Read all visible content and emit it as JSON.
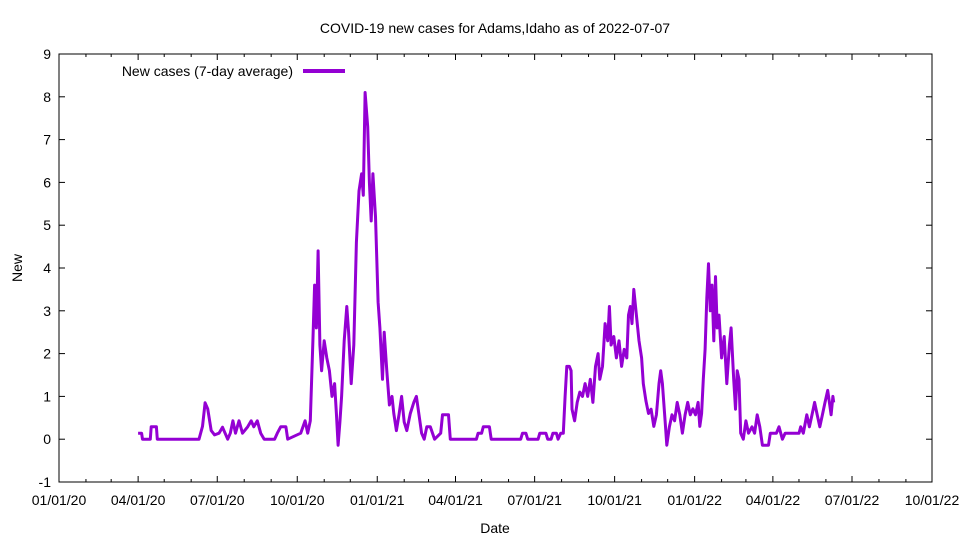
{
  "chart_data": {
    "type": "line",
    "title": "COVID-19 new cases for Adams,Idaho as of 2022-07-07",
    "xlabel": "Date",
    "ylabel": "New",
    "legend_position": "top-left",
    "grid": false,
    "ylim": [
      -1,
      9
    ],
    "xlim": [
      "2020-01-01",
      "2022-10-01"
    ],
    "y_ticks": [
      "-1",
      "0",
      "1",
      "2",
      "3",
      "4",
      "5",
      "6",
      "7",
      "8",
      "9"
    ],
    "x_ticks": [
      {
        "date": "2020-01-01",
        "label": "01/01/20"
      },
      {
        "date": "2020-04-01",
        "label": "04/01/20"
      },
      {
        "date": "2020-07-01",
        "label": "07/01/20"
      },
      {
        "date": "2020-10-01",
        "label": "10/01/20"
      },
      {
        "date": "2021-01-01",
        "label": "01/01/21"
      },
      {
        "date": "2021-04-01",
        "label": "04/01/21"
      },
      {
        "date": "2021-07-01",
        "label": "07/01/21"
      },
      {
        "date": "2021-10-01",
        "label": "10/01/21"
      },
      {
        "date": "2022-01-01",
        "label": "01/01/22"
      },
      {
        "date": "2022-04-01",
        "label": "04/01/22"
      },
      {
        "date": "2022-07-01",
        "label": "07/01/22"
      },
      {
        "date": "2022-10-01",
        "label": "10/01/22"
      }
    ],
    "series": [
      {
        "name": "New cases (7-day average)",
        "color": "#9400d3",
        "points": [
          [
            "2020-04-01",
            0.14
          ],
          [
            "2020-04-05",
            0.14
          ],
          [
            "2020-04-06",
            0
          ],
          [
            "2020-04-15",
            0
          ],
          [
            "2020-04-16",
            0.29
          ],
          [
            "2020-04-22",
            0.29
          ],
          [
            "2020-04-23",
            0
          ],
          [
            "2020-06-10",
            0
          ],
          [
            "2020-06-14",
            0.3
          ],
          [
            "2020-06-17",
            0.85
          ],
          [
            "2020-06-20",
            0.71
          ],
          [
            "2020-06-24",
            0.2
          ],
          [
            "2020-06-28",
            0.1
          ],
          [
            "2020-07-03",
            0.14
          ],
          [
            "2020-07-07",
            0.28
          ],
          [
            "2020-07-10",
            0.14
          ],
          [
            "2020-07-13",
            0
          ],
          [
            "2020-07-16",
            0.14
          ],
          [
            "2020-07-19",
            0.43
          ],
          [
            "2020-07-22",
            0.14
          ],
          [
            "2020-07-26",
            0.43
          ],
          [
            "2020-07-30",
            0.14
          ],
          [
            "2020-08-05",
            0.29
          ],
          [
            "2020-08-09",
            0.43
          ],
          [
            "2020-08-12",
            0.29
          ],
          [
            "2020-08-16",
            0.43
          ],
          [
            "2020-08-20",
            0.14
          ],
          [
            "2020-08-24",
            0
          ],
          [
            "2020-09-05",
            0
          ],
          [
            "2020-09-08",
            0.14
          ],
          [
            "2020-09-12",
            0.29
          ],
          [
            "2020-09-18",
            0.29
          ],
          [
            "2020-09-20",
            0
          ],
          [
            "2020-10-05",
            0.14
          ],
          [
            "2020-10-10",
            0.43
          ],
          [
            "2020-10-13",
            0.14
          ],
          [
            "2020-10-16",
            0.43
          ],
          [
            "2020-10-19",
            2.3
          ],
          [
            "2020-10-21",
            3.6
          ],
          [
            "2020-10-23",
            2.6
          ],
          [
            "2020-10-25",
            4.4
          ],
          [
            "2020-10-27",
            2.2
          ],
          [
            "2020-10-29",
            1.6
          ],
          [
            "2020-11-01",
            2.3
          ],
          [
            "2020-11-04",
            1.9
          ],
          [
            "2020-11-07",
            1.6
          ],
          [
            "2020-11-10",
            1.0
          ],
          [
            "2020-11-13",
            1.3
          ],
          [
            "2020-11-15",
            0.6
          ],
          [
            "2020-11-17",
            -0.14
          ],
          [
            "2020-11-19",
            0.4
          ],
          [
            "2020-11-21",
            1.0
          ],
          [
            "2020-11-24",
            2.3
          ],
          [
            "2020-11-27",
            3.1
          ],
          [
            "2020-11-29",
            2.5
          ],
          [
            "2020-12-02",
            1.3
          ],
          [
            "2020-12-05",
            2.2
          ],
          [
            "2020-12-08",
            4.6
          ],
          [
            "2020-12-11",
            5.8
          ],
          [
            "2020-12-14",
            6.2
          ],
          [
            "2020-12-16",
            5.7
          ],
          [
            "2020-12-18",
            8.1
          ],
          [
            "2020-12-21",
            7.3
          ],
          [
            "2020-12-23",
            6.0
          ],
          [
            "2020-12-25",
            5.1
          ],
          [
            "2020-12-27",
            6.2
          ],
          [
            "2020-12-30",
            5.2
          ],
          [
            "2021-01-02",
            3.2
          ],
          [
            "2021-01-04",
            2.6
          ],
          [
            "2021-01-07",
            1.4
          ],
          [
            "2021-01-09",
            2.5
          ],
          [
            "2021-01-12",
            1.6
          ],
          [
            "2021-01-15",
            0.8
          ],
          [
            "2021-01-18",
            1.0
          ],
          [
            "2021-01-20",
            0.6
          ],
          [
            "2021-01-23",
            0.2
          ],
          [
            "2021-01-26",
            0.57
          ],
          [
            "2021-01-29",
            1.0
          ],
          [
            "2021-02-01",
            0.4
          ],
          [
            "2021-02-04",
            0.2
          ],
          [
            "2021-02-08",
            0.6
          ],
          [
            "2021-02-12",
            0.86
          ],
          [
            "2021-02-15",
            1.0
          ],
          [
            "2021-02-18",
            0.57
          ],
          [
            "2021-02-21",
            0.14
          ],
          [
            "2021-02-24",
            0
          ],
          [
            "2021-02-27",
            0.29
          ],
          [
            "2021-03-03",
            0.29
          ],
          [
            "2021-03-08",
            0
          ],
          [
            "2021-03-15",
            0.14
          ],
          [
            "2021-03-17",
            0.57
          ],
          [
            "2021-03-24",
            0.57
          ],
          [
            "2021-03-26",
            0
          ],
          [
            "2021-04-25",
            0
          ],
          [
            "2021-04-27",
            0.14
          ],
          [
            "2021-05-01",
            0.14
          ],
          [
            "2021-05-03",
            0.29
          ],
          [
            "2021-05-10",
            0.29
          ],
          [
            "2021-05-12",
            0
          ],
          [
            "2021-06-15",
            0
          ],
          [
            "2021-06-17",
            0.14
          ],
          [
            "2021-06-21",
            0.14
          ],
          [
            "2021-06-23",
            0
          ],
          [
            "2021-07-05",
            0
          ],
          [
            "2021-07-07",
            0.14
          ],
          [
            "2021-07-14",
            0.14
          ],
          [
            "2021-07-16",
            0
          ],
          [
            "2021-07-20",
            0
          ],
          [
            "2021-07-22",
            0.14
          ],
          [
            "2021-07-26",
            0.14
          ],
          [
            "2021-07-28",
            0
          ],
          [
            "2021-07-31",
            0.14
          ],
          [
            "2021-08-03",
            0.14
          ],
          [
            "2021-08-05",
            1.0
          ],
          [
            "2021-08-07",
            1.7
          ],
          [
            "2021-08-10",
            1.7
          ],
          [
            "2021-08-12",
            1.6
          ],
          [
            "2021-08-13",
            0.7
          ],
          [
            "2021-08-16",
            0.43
          ],
          [
            "2021-08-19",
            0.86
          ],
          [
            "2021-08-22",
            1.1
          ],
          [
            "2021-08-25",
            1.0
          ],
          [
            "2021-08-28",
            1.3
          ],
          [
            "2021-08-31",
            1.0
          ],
          [
            "2021-09-03",
            1.4
          ],
          [
            "2021-09-06",
            0.86
          ],
          [
            "2021-09-09",
            1.7
          ],
          [
            "2021-09-12",
            2.0
          ],
          [
            "2021-09-14",
            1.4
          ],
          [
            "2021-09-17",
            1.7
          ],
          [
            "2021-09-20",
            2.7
          ],
          [
            "2021-09-23",
            2.3
          ],
          [
            "2021-09-25",
            3.1
          ],
          [
            "2021-09-27",
            2.2
          ],
          [
            "2021-09-30",
            2.4
          ],
          [
            "2021-10-03",
            1.9
          ],
          [
            "2021-10-06",
            2.3
          ],
          [
            "2021-10-09",
            1.7
          ],
          [
            "2021-10-12",
            2.1
          ],
          [
            "2021-10-15",
            1.9
          ],
          [
            "2021-10-17",
            2.9
          ],
          [
            "2021-10-19",
            3.1
          ],
          [
            "2021-10-21",
            2.7
          ],
          [
            "2021-10-23",
            3.5
          ],
          [
            "2021-10-26",
            2.9
          ],
          [
            "2021-10-29",
            2.3
          ],
          [
            "2021-11-01",
            1.9
          ],
          [
            "2021-11-03",
            1.3
          ],
          [
            "2021-11-06",
            0.9
          ],
          [
            "2021-11-09",
            0.6
          ],
          [
            "2021-11-12",
            0.7
          ],
          [
            "2021-11-15",
            0.3
          ],
          [
            "2021-11-18",
            0.57
          ],
          [
            "2021-11-21",
            1.3
          ],
          [
            "2021-11-23",
            1.6
          ],
          [
            "2021-11-25",
            1.3
          ],
          [
            "2021-11-28",
            0.43
          ],
          [
            "2021-11-30",
            -0.14
          ],
          [
            "2021-12-03",
            0.29
          ],
          [
            "2021-12-06",
            0.57
          ],
          [
            "2021-12-09",
            0.43
          ],
          [
            "2021-12-12",
            0.86
          ],
          [
            "2021-12-15",
            0.57
          ],
          [
            "2021-12-18",
            0.14
          ],
          [
            "2021-12-21",
            0.57
          ],
          [
            "2021-12-24",
            0.86
          ],
          [
            "2021-12-27",
            0.57
          ],
          [
            "2021-12-30",
            0.71
          ],
          [
            "2022-01-02",
            0.57
          ],
          [
            "2022-01-05",
            0.86
          ],
          [
            "2022-01-07",
            0.3
          ],
          [
            "2022-01-09",
            0.6
          ],
          [
            "2022-01-11",
            1.4
          ],
          [
            "2022-01-13",
            2.1
          ],
          [
            "2022-01-15",
            3.3
          ],
          [
            "2022-01-17",
            4.1
          ],
          [
            "2022-01-19",
            3.0
          ],
          [
            "2022-01-21",
            3.6
          ],
          [
            "2022-01-23",
            2.3
          ],
          [
            "2022-01-25",
            3.8
          ],
          [
            "2022-01-27",
            2.6
          ],
          [
            "2022-01-29",
            2.9
          ],
          [
            "2022-02-01",
            1.9
          ],
          [
            "2022-02-04",
            2.4
          ],
          [
            "2022-02-07",
            1.3
          ],
          [
            "2022-02-10",
            2.2
          ],
          [
            "2022-02-12",
            2.6
          ],
          [
            "2022-02-15",
            1.4
          ],
          [
            "2022-02-17",
            0.7
          ],
          [
            "2022-02-19",
            1.6
          ],
          [
            "2022-02-21",
            1.4
          ],
          [
            "2022-02-23",
            0.14
          ],
          [
            "2022-02-26",
            0
          ],
          [
            "2022-03-01",
            0.43
          ],
          [
            "2022-03-04",
            0.14
          ],
          [
            "2022-03-08",
            0.29
          ],
          [
            "2022-03-11",
            0.14
          ],
          [
            "2022-03-14",
            0.57
          ],
          [
            "2022-03-17",
            0.29
          ],
          [
            "2022-03-20",
            -0.14
          ],
          [
            "2022-03-27",
            -0.14
          ],
          [
            "2022-03-29",
            0.14
          ],
          [
            "2022-04-05",
            0.14
          ],
          [
            "2022-04-08",
            0.29
          ],
          [
            "2022-04-12",
            0
          ],
          [
            "2022-04-15",
            0.14
          ],
          [
            "2022-05-01",
            0.14
          ],
          [
            "2022-05-03",
            0.29
          ],
          [
            "2022-05-06",
            0.14
          ],
          [
            "2022-05-10",
            0.57
          ],
          [
            "2022-05-13",
            0.29
          ],
          [
            "2022-05-16",
            0.57
          ],
          [
            "2022-05-19",
            0.86
          ],
          [
            "2022-05-22",
            0.57
          ],
          [
            "2022-05-25",
            0.29
          ],
          [
            "2022-05-28",
            0.57
          ],
          [
            "2022-05-31",
            0.86
          ],
          [
            "2022-06-03",
            1.14
          ],
          [
            "2022-06-05",
            0.86
          ],
          [
            "2022-06-07",
            0.57
          ],
          [
            "2022-06-09",
            1.0
          ],
          [
            "2022-06-10",
            0.86
          ]
        ]
      }
    ]
  }
}
